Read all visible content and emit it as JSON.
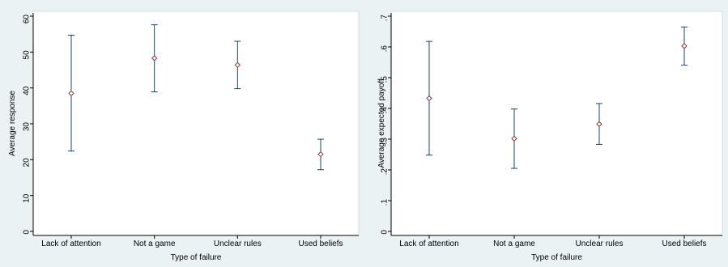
{
  "chart_data": [
    {
      "type": "scatter",
      "categories": [
        "Lack of attention",
        "Not a game",
        "Unclear rules",
        "Used beliefs"
      ],
      "values": [
        38.5,
        48.3,
        46.4,
        21.5
      ],
      "error_low": [
        22.4,
        38.9,
        39.8,
        17.2
      ],
      "error_high": [
        54.7,
        57.6,
        53.0,
        25.7
      ],
      "xlabel": "Type of failure",
      "ylabel": "Average response",
      "ylim": [
        0,
        60
      ],
      "yticks": [
        0,
        10,
        20,
        30,
        40,
        50,
        60
      ],
      "ytick_labels": [
        "0",
        "10",
        "20",
        "30",
        "40",
        "50",
        "60"
      ],
      "grid": false
    },
    {
      "type": "scatter",
      "categories": [
        "Lack of attention",
        "Not a game",
        "Unclear rules",
        "Used beliefs"
      ],
      "values": [
        0.433,
        0.302,
        0.349,
        0.603
      ],
      "error_low": [
        0.248,
        0.205,
        0.283,
        0.541
      ],
      "error_high": [
        0.618,
        0.398,
        0.416,
        0.665
      ],
      "xlabel": "Type of failure",
      "ylabel": "Average expected payoff",
      "ylim": [
        0,
        0.7
      ],
      "yticks": [
        0,
        0.1,
        0.2,
        0.3,
        0.4,
        0.5,
        0.6,
        0.7
      ],
      "ytick_labels": [
        "0",
        ".1",
        ".2",
        ".3",
        ".4",
        ".5",
        ".6",
        ".7"
      ],
      "grid": false
    }
  ],
  "colors": {
    "background": "#eaf2f3",
    "plot_area": "#ffffff",
    "error_bar": "#1a476f",
    "marker": "#90353b"
  }
}
